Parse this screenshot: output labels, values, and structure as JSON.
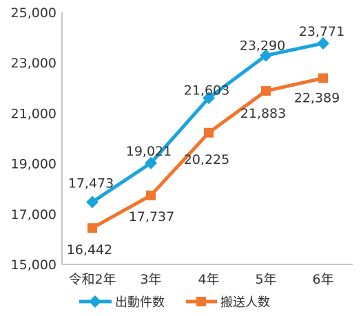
{
  "chart_data": {
    "type": "line",
    "categories": [
      "令和2年",
      "3年",
      "4年",
      "5年",
      "6年"
    ],
    "ylim": [
      15000,
      25000
    ],
    "yticks": [
      "15,000",
      "17,000",
      "19,000",
      "21,000",
      "23,000",
      "25,000"
    ],
    "ytick_values": [
      15000,
      17000,
      19000,
      21000,
      23000,
      25000
    ],
    "grid": false,
    "legend_position": "bottom",
    "series": [
      {
        "name": "出動件数",
        "color": "#1aa3dd",
        "marker": "diamond",
        "values": [
          17473,
          19021,
          21603,
          23290,
          23771
        ],
        "labels": [
          "17,473",
          "19,021",
          "21,603",
          "23,290",
          "23,771"
        ]
      },
      {
        "name": "搬送人数",
        "color": "#f0752d",
        "marker": "square",
        "values": [
          16442,
          17737,
          20225,
          21883,
          22389
        ],
        "labels": [
          "16,442",
          "17,737",
          "20,225",
          "21,883",
          "22,389"
        ]
      }
    ]
  }
}
